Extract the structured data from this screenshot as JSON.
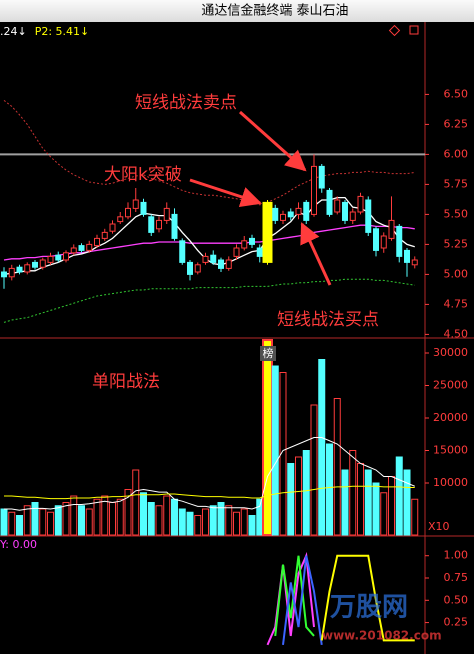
{
  "header": {
    "title": "通达信金融终端  泰山石油"
  },
  "top_info": [
    {
      "text": ".24↓",
      "color": "#ffffff"
    },
    {
      "text": "P2: 5.41↓",
      "color": "#ffff00"
    }
  ],
  "annotations": [
    "短线战法卖点",
    "大阳k突破",
    "短线战法买点",
    "单阳战法"
  ],
  "badge": "榜",
  "watermark": {
    "name": "万股网",
    "url": "www.201082.com"
  },
  "chart_data": [
    {
      "type": "candlestick",
      "open": [
        5.02,
        4.98,
        5.06,
        5.02,
        5.1,
        5.06,
        5.1,
        5.16,
        5.12,
        5.18,
        5.24,
        5.2,
        5.24,
        5.3,
        5.36,
        5.44,
        5.48,
        5.55,
        5.6,
        5.48,
        5.38,
        5.45,
        5.5,
        5.28,
        5.1,
        5.02,
        5.1,
        5.16,
        5.12,
        5.05,
        5.15,
        5.22,
        5.3,
        5.22,
        5.1,
        5.55,
        5.45,
        5.52,
        5.5,
        5.6,
        5.5,
        5.9,
        5.7,
        5.52,
        5.6,
        5.45,
        5.52,
        5.62,
        5.38,
        5.22,
        5.3,
        5.4,
        5.2,
        5.08
      ],
      "high": [
        5.06,
        5.08,
        5.08,
        5.1,
        5.12,
        5.14,
        5.18,
        5.19,
        5.2,
        5.25,
        5.26,
        5.28,
        5.33,
        5.38,
        5.45,
        5.52,
        5.6,
        5.72,
        5.63,
        5.5,
        5.48,
        5.6,
        5.55,
        5.3,
        5.12,
        5.1,
        5.18,
        5.2,
        5.14,
        5.15,
        5.25,
        5.32,
        5.33,
        5.25,
        5.62,
        5.58,
        5.53,
        5.55,
        5.6,
        5.62,
        6.0,
        5.92,
        5.72,
        5.65,
        5.62,
        5.55,
        5.68,
        5.65,
        5.4,
        5.35,
        5.65,
        5.42,
        5.22,
        5.15
      ],
      "low": [
        4.88,
        4.95,
        5.0,
        5.0,
        5.04,
        5.04,
        5.08,
        5.1,
        5.1,
        5.16,
        5.18,
        5.18,
        5.22,
        5.28,
        5.34,
        5.42,
        5.46,
        5.52,
        5.48,
        5.32,
        5.35,
        5.42,
        5.28,
        5.08,
        4.95,
        5.0,
        5.08,
        5.08,
        5.02,
        5.03,
        5.12,
        5.2,
        5.22,
        5.1,
        5.08,
        5.42,
        5.42,
        5.45,
        5.46,
        5.42,
        5.48,
        5.68,
        5.48,
        5.5,
        5.42,
        5.42,
        5.5,
        5.32,
        5.15,
        5.18,
        5.28,
        5.1,
        4.98,
        5.05
      ],
      "close": [
        4.98,
        5.05,
        5.02,
        5.08,
        5.06,
        5.12,
        5.15,
        5.12,
        5.18,
        5.22,
        5.2,
        5.25,
        5.3,
        5.35,
        5.42,
        5.48,
        5.55,
        5.62,
        5.5,
        5.35,
        5.45,
        5.55,
        5.3,
        5.1,
        5.0,
        5.08,
        5.15,
        5.1,
        5.05,
        5.12,
        5.22,
        5.28,
        5.25,
        5.15,
        5.6,
        5.45,
        5.5,
        5.48,
        5.55,
        5.45,
        5.9,
        5.72,
        5.5,
        5.62,
        5.45,
        5.52,
        5.65,
        5.35,
        5.2,
        5.32,
        5.45,
        5.15,
        5.1,
        5.12
      ],
      "up_color": "#ff3c3c",
      "down_color": "#54ffff",
      "highlight": {
        "index": 34,
        "color": "#ffff00"
      },
      "series": [
        {
          "color": "#ff40ff",
          "style": "solid",
          "values": [
            5.12,
            5.13,
            5.13,
            5.14,
            5.14,
            5.15,
            5.15,
            5.16,
            5.17,
            5.18,
            5.18,
            5.19,
            5.2,
            5.21,
            5.22,
            5.23,
            5.24,
            5.25,
            5.26,
            5.26,
            5.27,
            5.27,
            5.27,
            5.27,
            5.26,
            5.26,
            5.26,
            5.26,
            5.26,
            5.26,
            5.26,
            5.26,
            5.27,
            5.27,
            5.28,
            5.29,
            5.3,
            5.31,
            5.32,
            5.33,
            5.35,
            5.36,
            5.37,
            5.38,
            5.39,
            5.4,
            5.41,
            5.41,
            5.4,
            5.4,
            5.4,
            5.39,
            5.39,
            5.38
          ]
        },
        {
          "color": "#ffffff",
          "style": "solid",
          "values": [
            5.0,
            5.01,
            5.02,
            5.03,
            5.03,
            5.06,
            5.08,
            5.1,
            5.13,
            5.16,
            5.17,
            5.19,
            5.23,
            5.26,
            5.3,
            5.36,
            5.42,
            5.48,
            5.51,
            5.5,
            5.49,
            5.49,
            5.43,
            5.35,
            5.28,
            5.2,
            5.13,
            5.09,
            5.08,
            5.1,
            5.13,
            5.16,
            5.19,
            5.2,
            5.3,
            5.34,
            5.39,
            5.44,
            5.52,
            5.49,
            5.57,
            5.62,
            5.62,
            5.64,
            5.64,
            5.56,
            5.55,
            5.52,
            5.44,
            5.41,
            5.39,
            5.3,
            5.25,
            5.23
          ]
        },
        {
          "color": "#c83232",
          "style": "dotted",
          "values": [
            6.45,
            6.4,
            6.33,
            6.25,
            6.15,
            6.05,
            5.98,
            5.92,
            5.87,
            5.83,
            5.8,
            5.77,
            5.76,
            5.75,
            5.76,
            5.78,
            5.8,
            5.82,
            5.83,
            5.8,
            5.78,
            5.76,
            5.73,
            5.7,
            5.68,
            5.67,
            5.66,
            5.66,
            5.65,
            5.64,
            5.63,
            5.62,
            5.6,
            5.58,
            5.6,
            5.63,
            5.66,
            5.7,
            5.74,
            5.77,
            5.8,
            5.82,
            5.83,
            5.84,
            5.84,
            5.85,
            5.85,
            5.86,
            5.85,
            5.85,
            5.84,
            5.84,
            5.84,
            5.85
          ]
        },
        {
          "color": "#32c832",
          "style": "dotted",
          "values": [
            4.6,
            4.62,
            4.63,
            4.64,
            4.66,
            4.68,
            4.7,
            4.72,
            4.74,
            4.76,
            4.78,
            4.8,
            4.82,
            4.83,
            4.84,
            4.85,
            4.86,
            4.87,
            4.87,
            4.88,
            4.88,
            4.88,
            4.88,
            4.88,
            4.88,
            4.89,
            4.89,
            4.89,
            4.89,
            4.89,
            4.89,
            4.9,
            4.9,
            4.9,
            4.9,
            4.91,
            4.92,
            4.92,
            4.93,
            4.93,
            4.94,
            4.94,
            4.95,
            4.95,
            4.96,
            4.96,
            4.96,
            4.96,
            4.95,
            4.95,
            4.94,
            4.93,
            4.92,
            4.91
          ]
        }
      ],
      "reference_line": {
        "value": 6.0,
        "color": "#a0a0a0"
      },
      "ylim": [
        4.47,
        6.97
      ],
      "yticks": [
        {
          "value": 4.5,
          "label": "4.50"
        },
        {
          "value": 4.75,
          "label": "4.75"
        },
        {
          "value": 5.0,
          "label": "5.00"
        },
        {
          "value": 5.25,
          "label": "5.25"
        },
        {
          "value": 5.5,
          "label": "5.50"
        },
        {
          "value": 5.75,
          "label": "5.75"
        },
        {
          "value": 6.0,
          "label": "6.00"
        },
        {
          "value": 6.25,
          "label": "6.25"
        },
        {
          "value": 6.5,
          "label": "6.50"
        }
      ]
    },
    {
      "type": "volume",
      "values": [
        6000,
        5500,
        5000,
        6500,
        7000,
        6000,
        5500,
        6500,
        7000,
        8000,
        6500,
        6000,
        7500,
        8000,
        7000,
        7500,
        9000,
        12000,
        8500,
        7000,
        6500,
        8000,
        7500,
        6000,
        5500,
        5000,
        6000,
        6500,
        7000,
        6500,
        5500,
        6000,
        5000,
        7500,
        32000,
        28000,
        27000,
        13000,
        14000,
        15000,
        22000,
        29000,
        16000,
        23000,
        12000,
        15000,
        13000,
        12000,
        10000,
        8500,
        11000,
        14000,
        12000,
        7500
      ],
      "series": [
        {
          "color": "#ffffff",
          "values": [
            6000,
            6000,
            5800,
            6000,
            6100,
            6100,
            6000,
            6200,
            6500,
            6700,
            6700,
            6800,
            7000,
            7200,
            7000,
            7200,
            7800,
            8800,
            9000,
            8800,
            8600,
            8600,
            7500,
            7200,
            6800,
            6400,
            6400,
            6200,
            6200,
            6200,
            6200,
            6200,
            6000,
            6400,
            11000,
            13000,
            15000,
            15500,
            16000,
            16500,
            17000,
            17000,
            16500,
            16000,
            15000,
            14000,
            13000,
            12500,
            12000,
            11000,
            11000,
            10500,
            10000,
            9500
          ]
        },
        {
          "color": "#ffff00",
          "values": [
            8000,
            8000,
            7900,
            7800,
            7800,
            7700,
            7600,
            7600,
            7600,
            7700,
            7700,
            7700,
            7800,
            7800,
            7900,
            7900,
            8000,
            8200,
            8200,
            8200,
            8200,
            8300,
            8300,
            8200,
            8100,
            8000,
            7900,
            7900,
            7900,
            7800,
            7800,
            7800,
            7700,
            7700,
            8100,
            8300,
            8500,
            8600,
            8700,
            8800,
            9000,
            9200,
            9300,
            9400,
            9400,
            9500,
            9500,
            9500,
            9500,
            9400,
            9400,
            9400,
            9300,
            9300
          ]
        }
      ],
      "unit_label": "X10",
      "ylim": [
        2000,
        32000
      ],
      "yticks": [
        10000,
        15000,
        20000,
        25000,
        30000
      ]
    },
    {
      "type": "line",
      "label": "Y: 0.00",
      "series": [
        {
          "color": "#ff40ff",
          "values": [
            null,
            null,
            null,
            null,
            null,
            null,
            null,
            null,
            null,
            null,
            null,
            null,
            null,
            null,
            null,
            null,
            null,
            null,
            null,
            null,
            null,
            null,
            null,
            null,
            null,
            null,
            null,
            null,
            null,
            null,
            null,
            null,
            null,
            null,
            0.0,
            0.2,
            0.9,
            0.1,
            0.8,
            1.0,
            0.2,
            null,
            null,
            null,
            null,
            null,
            null,
            null,
            null,
            null,
            null,
            null,
            null,
            null
          ]
        },
        {
          "color": "#32ff32",
          "values": [
            null,
            null,
            null,
            null,
            null,
            null,
            null,
            null,
            null,
            null,
            null,
            null,
            null,
            null,
            null,
            null,
            null,
            null,
            null,
            null,
            null,
            null,
            null,
            null,
            null,
            null,
            null,
            null,
            null,
            null,
            null,
            null,
            null,
            null,
            null,
            0.1,
            0.9,
            0.3,
            1.0,
            0.2,
            0.1,
            null,
            null,
            null,
            null,
            null,
            null,
            null,
            null,
            null,
            null,
            null,
            null,
            null
          ]
        },
        {
          "color": "#3c64ff",
          "values": [
            null,
            null,
            null,
            null,
            null,
            null,
            null,
            null,
            null,
            null,
            null,
            null,
            null,
            null,
            null,
            null,
            null,
            null,
            null,
            null,
            null,
            null,
            null,
            null,
            null,
            null,
            null,
            null,
            null,
            null,
            null,
            null,
            null,
            null,
            null,
            null,
            0.0,
            0.7,
            0.2,
            1.0,
            0.6,
            0.0,
            null,
            null,
            null,
            null,
            null,
            null,
            null,
            null,
            null,
            null,
            null,
            null
          ]
        },
        {
          "color": "#ffff00",
          "values": [
            null,
            null,
            null,
            null,
            null,
            null,
            null,
            null,
            null,
            null,
            null,
            null,
            null,
            null,
            null,
            null,
            null,
            null,
            null,
            null,
            null,
            null,
            null,
            null,
            null,
            null,
            null,
            null,
            null,
            null,
            null,
            null,
            null,
            null,
            null,
            null,
            null,
            null,
            null,
            null,
            null,
            0.05,
            0.6,
            1.0,
            1.0,
            1.0,
            1.0,
            1.0,
            0.5,
            0.05,
            0.05,
            0.05,
            0.05,
            0.05
          ]
        }
      ],
      "ylim": [
        -0.08,
        1.21
      ],
      "yticks": [
        {
          "value": 0.25,
          "label": "0.25"
        },
        {
          "value": 0.5,
          "label": "0.50"
        },
        {
          "value": 0.75,
          "label": "0.75"
        },
        {
          "value": 1.0,
          "label": "1.00"
        }
      ]
    }
  ]
}
